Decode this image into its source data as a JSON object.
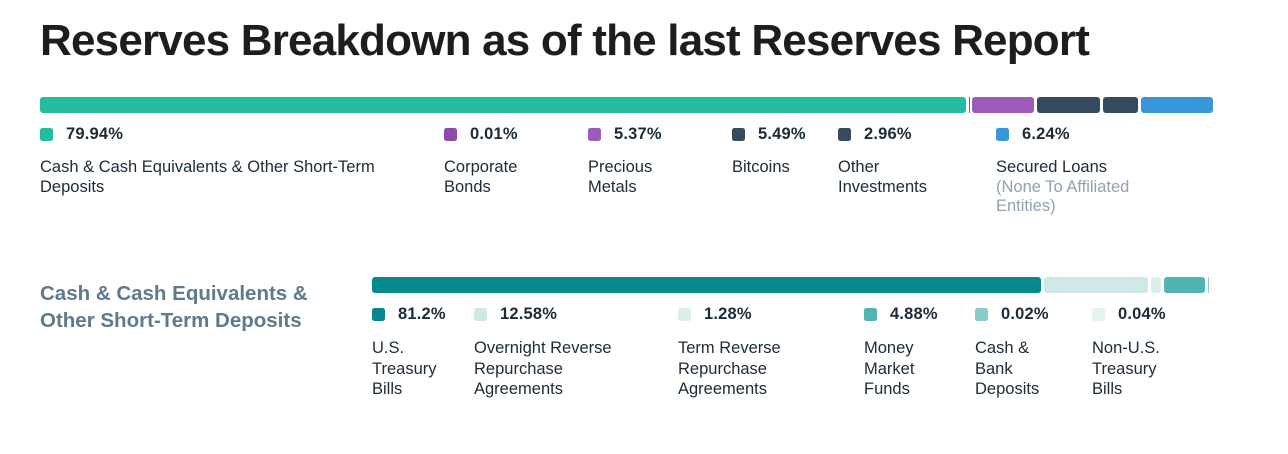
{
  "title": "Reserves Breakdown as of the last Reserves Report",
  "chart_data": [
    {
      "type": "bar",
      "variant": "horizontal-stacked",
      "title": "Reserves Breakdown",
      "unit": "%",
      "total": 100,
      "segments": [
        {
          "label": "Cash & Cash Equivalents & Other Short-Term Deposits",
          "pct": "79.94%",
          "value": 79.94,
          "color": "#21bd9e"
        },
        {
          "label": "Corporate Bonds",
          "pct": "0.01%",
          "value": 0.01,
          "color": "#8f4ba5"
        },
        {
          "label": "Precious Metals",
          "pct": "5.37%",
          "value": 5.37,
          "color": "#9d5bb8"
        },
        {
          "label": "Bitcoins",
          "pct": "5.49%",
          "value": 5.49,
          "color": "#364b5f"
        },
        {
          "label": "Other Investments",
          "pct": "2.96%",
          "value": 2.96,
          "color": "#364b5f"
        },
        {
          "label": "Secured Loans",
          "sublabel": "(None To Affiliated Entities)",
          "pct": "6.24%",
          "value": 6.24,
          "color": "#3896dc"
        }
      ]
    },
    {
      "type": "bar",
      "variant": "horizontal-stacked",
      "title": "Cash & Cash Equivalents & Other Short-Term Deposits",
      "unit": "%",
      "total": 100,
      "segments": [
        {
          "label": "U.S. Treasury Bills",
          "pct": "81.2%",
          "value": 81.2,
          "color": "#05898c"
        },
        {
          "label": "Overnight Reverse Repurchase Agreements",
          "pct": "12.58%",
          "value": 12.58,
          "color": "#d0e9e7"
        },
        {
          "label": "Term Reverse Repurchase Agreements",
          "pct": "1.28%",
          "value": 1.28,
          "color": "#dcefed"
        },
        {
          "label": "Money Market Funds",
          "pct": "4.88%",
          "value": 4.88,
          "color": "#50b4b1"
        },
        {
          "label": "Cash & Bank Deposits",
          "pct": "0.02%",
          "value": 0.02,
          "color": "#87ccc8"
        },
        {
          "label": "Non-U.S. Treasury Bills",
          "pct": "0.04%",
          "value": 0.04,
          "color": "#e2f3f1"
        }
      ]
    }
  ]
}
